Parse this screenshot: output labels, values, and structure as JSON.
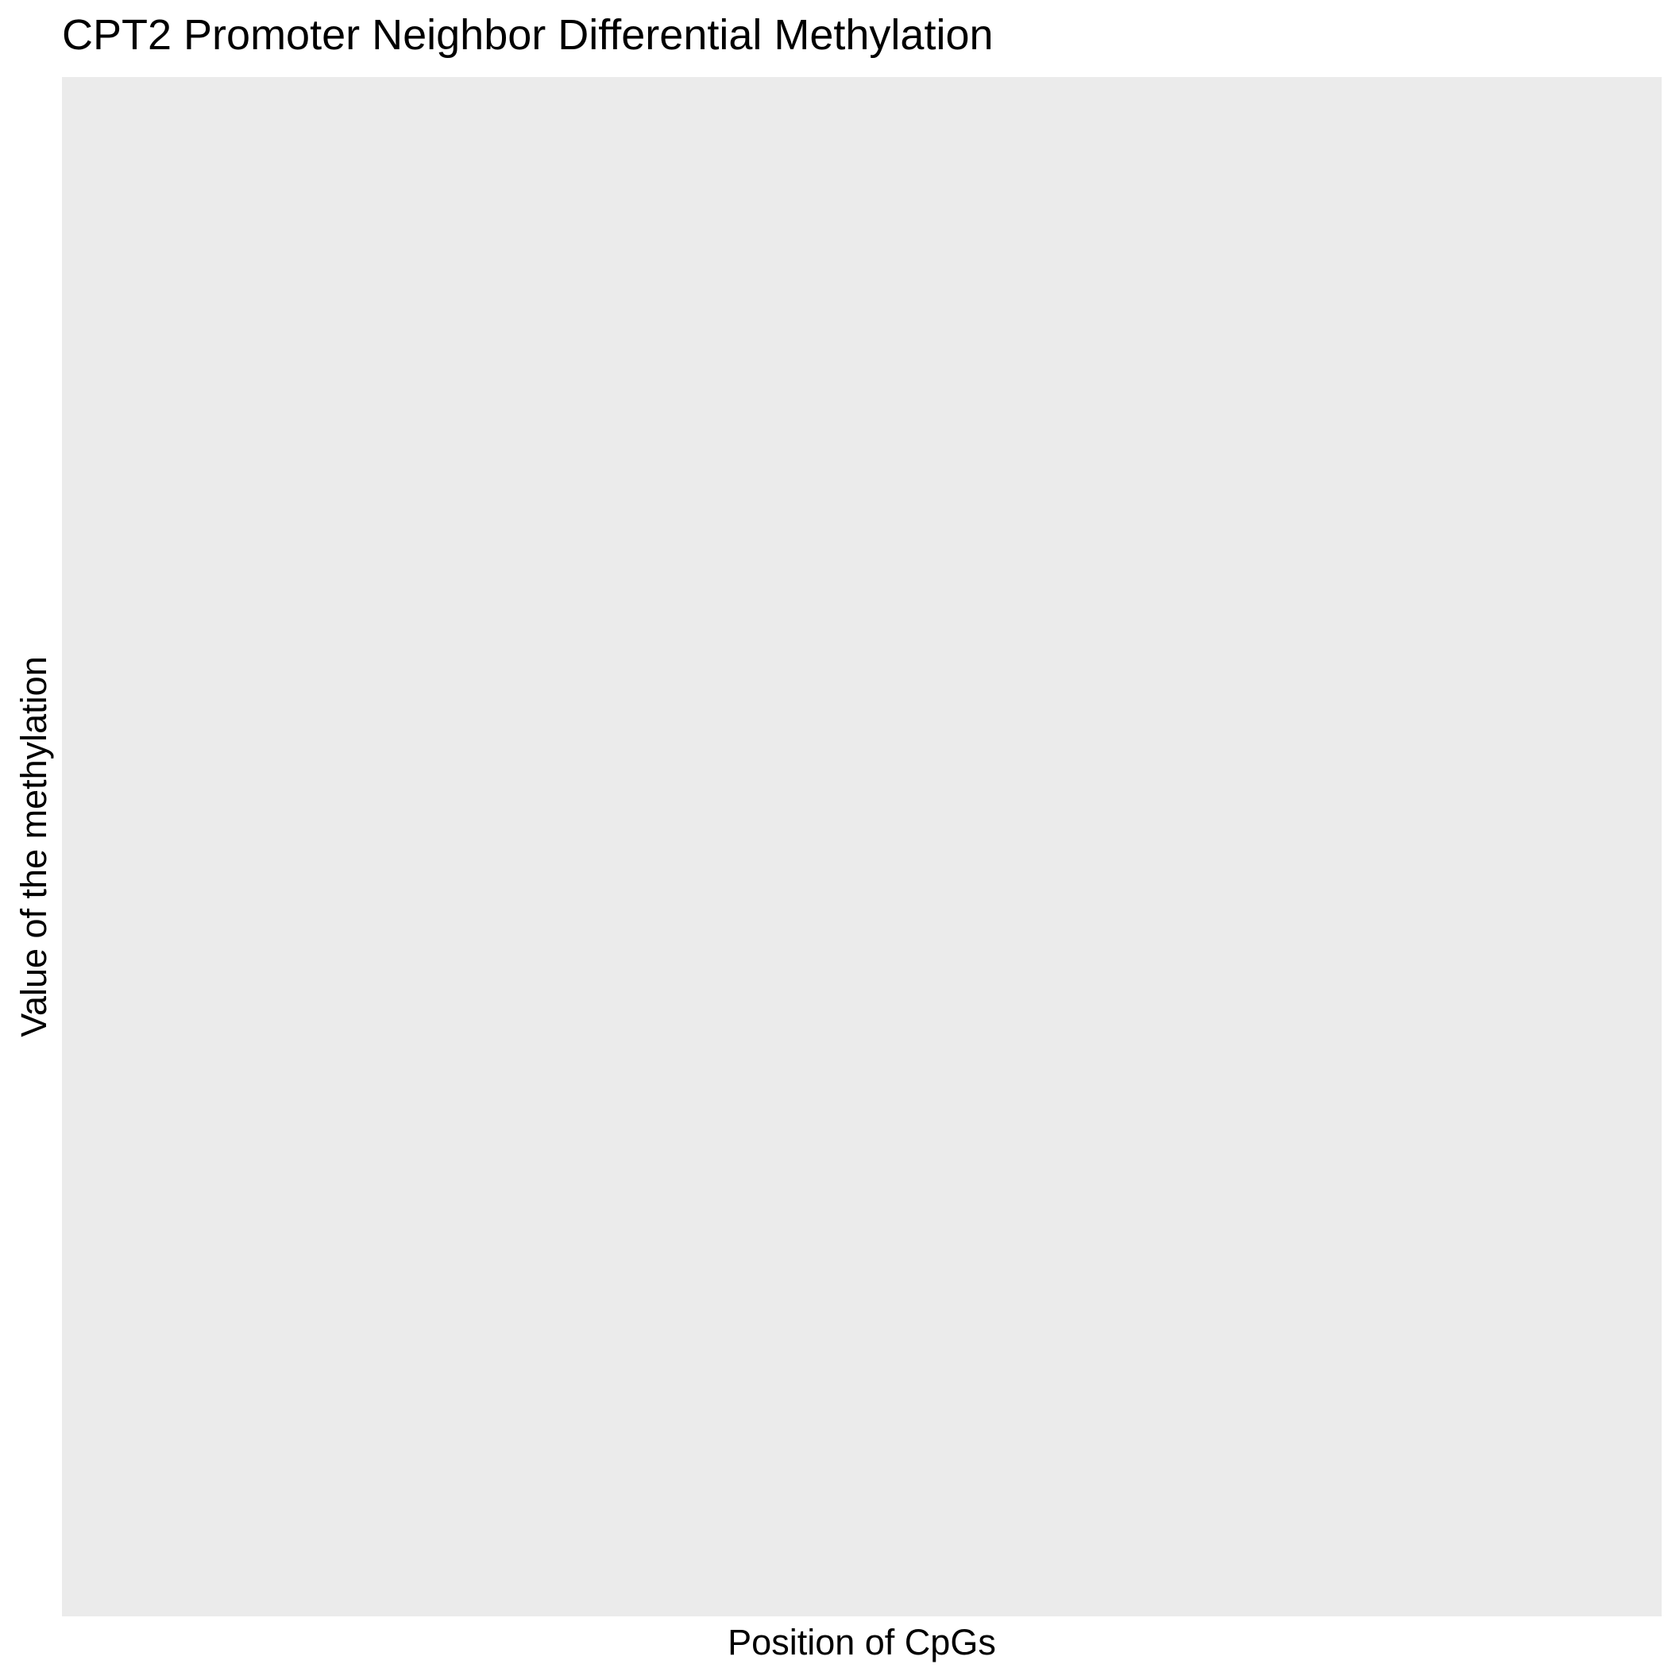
{
  "chart_data": {
    "type": "line",
    "title": "CPT2 Promoter Neighbor Differential Methylation",
    "xlabel": "Position of CpGs",
    "ylabel": "Value of the methylation",
    "series": [],
    "grid": false
  },
  "colors": {
    "panel_background": "#ebebeb",
    "page_background": "#ffffff",
    "text": "#000000"
  }
}
